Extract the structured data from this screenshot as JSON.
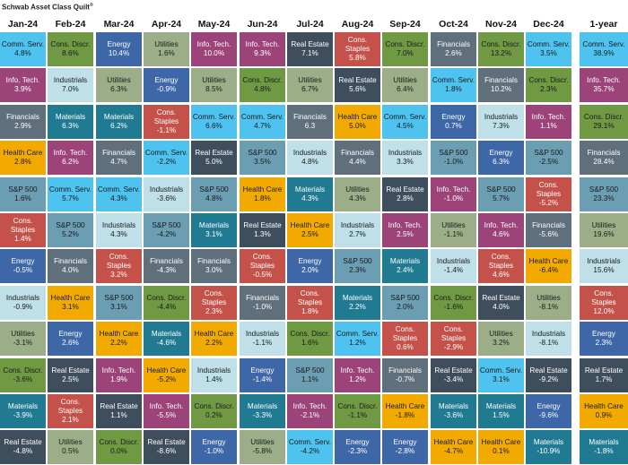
{
  "title": "Schwab Asset Class Quilt",
  "title_mark": "®",
  "chart_data": {
    "type": "table",
    "title": "Schwab Asset Class Quilt®",
    "columns": [
      "Jan-24",
      "Feb-24",
      "Mar-24",
      "Apr-24",
      "May-24",
      "Jun-24",
      "Jul-24",
      "Aug-24",
      "Sep-24",
      "Oct-24",
      "Nov-24",
      "Dec-24",
      "1-year"
    ],
    "colors": {
      "Comm. Serv.": {
        "bg": "#4fc3f0",
        "fg": "#1a1a1a"
      },
      "Cons. Discr.": {
        "bg": "#6f9a43",
        "fg": "#1a1a1a"
      },
      "Energy": {
        "bg": "#3e67a8",
        "fg": "#ffffff"
      },
      "Utilities": {
        "bg": "#9bae88",
        "fg": "#1a1a1a"
      },
      "Info. Tech.": {
        "bg": "#9c4479",
        "fg": "#ffffff"
      },
      "Real Estate": {
        "bg": "#3e4e5d",
        "fg": "#ffffff"
      },
      "Cons. Staples": {
        "bg": "#c5524a",
        "fg": "#ffffff"
      },
      "Financials": {
        "bg": "#5f6f7b",
        "fg": "#ffffff"
      },
      "Industrials": {
        "bg": "#bfe0e8",
        "fg": "#1a1a1a"
      },
      "Materials": {
        "bg": "#1f7a92",
        "fg": "#ffffff"
      },
      "Health Care": {
        "bg": "#f2aa00",
        "fg": "#1a1a1a"
      },
      "S&P 500": {
        "bg": "#6b9db3",
        "fg": "#1a1a1a"
      }
    },
    "cells": [
      [
        [
          "Comm. Serv.",
          "4.8%"
        ],
        [
          "Info. Tech.",
          "3.9%"
        ],
        [
          "Financials",
          "2.9%"
        ],
        [
          "Health Care",
          "2.8%"
        ],
        [
          "S&P 500",
          "1.6%"
        ],
        [
          "Cons. Staples",
          "1.4%"
        ],
        [
          "Energy",
          "-0.5%"
        ],
        [
          "Industrials",
          "-0.9%"
        ],
        [
          "Utilities",
          "-3.1%"
        ],
        [
          "Cons. Discr.",
          "-3.6%"
        ],
        [
          "Materials",
          "-3.9%"
        ],
        [
          "Real Estate",
          "-4.8%"
        ]
      ],
      [
        [
          "Cons. Discr.",
          "8.6%"
        ],
        [
          "Industrials",
          "7.0%"
        ],
        [
          "Materials",
          "6.3%"
        ],
        [
          "Info. Tech.",
          "6.2%"
        ],
        [
          "Comm. Serv.",
          "5.7%"
        ],
        [
          "S&P 500",
          "5.2%"
        ],
        [
          "Financials",
          "4.0%"
        ],
        [
          "Health Care",
          "3.1%"
        ],
        [
          "Energy",
          "2.6%"
        ],
        [
          "Real Estate",
          "2.5%"
        ],
        [
          "Cons. Staples",
          "2.1%"
        ],
        [
          "Utilities",
          "0.5%"
        ]
      ],
      [
        [
          "Energy",
          "10.4%"
        ],
        [
          "Utilities",
          "6.3%"
        ],
        [
          "Materials",
          "6.2%"
        ],
        [
          "Financials",
          "4.7%"
        ],
        [
          "Comm. Serv.",
          "4.3%"
        ],
        [
          "Industrials",
          "4.3%"
        ],
        [
          "Cons. Staples",
          "3.2%"
        ],
        [
          "S&P 500",
          "3.1%"
        ],
        [
          "Health Care",
          "2.2%"
        ],
        [
          "Info. Tech.",
          "1.9%"
        ],
        [
          "Real Estate",
          "1.1%"
        ],
        [
          "Cons. Discr.",
          "0.0%"
        ]
      ],
      [
        [
          "Utilities",
          "1.6%"
        ],
        [
          "Energy",
          "-0.9%"
        ],
        [
          "Cons. Staples",
          "-1.1%"
        ],
        [
          "Comm. Serv.",
          "-2.2%"
        ],
        [
          "Industrials",
          "-3.6%"
        ],
        [
          "S&P 500",
          "-4.2%"
        ],
        [
          "Financials",
          "-4.3%"
        ],
        [
          "Cons. Discr.",
          "-4.4%"
        ],
        [
          "Materials",
          "-4.6%"
        ],
        [
          "Health Care",
          "-5.2%"
        ],
        [
          "Info. Tech.",
          "-5.5%"
        ],
        [
          "Real Estate",
          "-8.6%"
        ]
      ],
      [
        [
          "Info. Tech.",
          "10.0%"
        ],
        [
          "Utilities",
          "8.5%"
        ],
        [
          "Comm. Serv.",
          "6.6%"
        ],
        [
          "Real Estate",
          "5.0%"
        ],
        [
          "S&P 500",
          "4.8%"
        ],
        [
          "Materials",
          "3.1%"
        ],
        [
          "Financials",
          "3.0%"
        ],
        [
          "Cons. Staples",
          "2.3%"
        ],
        [
          "Health Care",
          "2.2%"
        ],
        [
          "Industrials",
          "1.4%"
        ],
        [
          "Cons. Discr.",
          "0.2%"
        ],
        [
          "Energy",
          "-1.0%"
        ]
      ],
      [
        [
          "Info. Tech.",
          "9.3%"
        ],
        [
          "Cons. Discr.",
          "4.8%"
        ],
        [
          "Comm. Serv.",
          "4.7%"
        ],
        [
          "S&P 500",
          "3.5%"
        ],
        [
          "Health Care",
          "1.8%"
        ],
        [
          "Real Estate",
          "1.3%"
        ],
        [
          "Cons. Staples",
          "-0.5%"
        ],
        [
          "Financials",
          "-1.0%"
        ],
        [
          "Industrials",
          "-1.1%"
        ],
        [
          "Energy",
          "-1.4%"
        ],
        [
          "Materials",
          "-3.3%"
        ],
        [
          "Utilities",
          "-5.8%"
        ]
      ],
      [
        [
          "Real Estate",
          "7.1%"
        ],
        [
          "Utilities",
          "6.7%"
        ],
        [
          "Financials",
          "6.3"
        ],
        [
          "Industrials",
          "4.8%"
        ],
        [
          "Materials",
          "4.3%"
        ],
        [
          "Health Care",
          "2.5%"
        ],
        [
          "Energy",
          "2.0%"
        ],
        [
          "Cons. Staples",
          "1.8%"
        ],
        [
          "Cons. Discr.",
          "1.6%"
        ],
        [
          "S&P 500",
          "1.1%"
        ],
        [
          "Info. Tech.",
          "-2.1%"
        ],
        [
          "Comm. Serv.",
          "-4.2%"
        ]
      ],
      [
        [
          "Cons. Staples",
          "5.8%"
        ],
        [
          "Real Estate",
          "5.6%"
        ],
        [
          "Health Care",
          "5.0%"
        ],
        [
          "Financials",
          "4.4%"
        ],
        [
          "Utilities",
          "4.3%"
        ],
        [
          "Industrials",
          "2.7%"
        ],
        [
          "S&P 500",
          "2.3%"
        ],
        [
          "Materials",
          "2.2%"
        ],
        [
          "Comm. Serv.",
          "1.2%"
        ],
        [
          "Info. Tech.",
          "1.2%"
        ],
        [
          "Cons. Discr.",
          "-1.1%"
        ],
        [
          "Energy",
          "-2.3%"
        ]
      ],
      [
        [
          "Cons. Discr.",
          "7.0%"
        ],
        [
          "Utilities",
          "6.4%"
        ],
        [
          "Comm. Serv.",
          "4.5%"
        ],
        [
          "Industrials",
          "3.3%"
        ],
        [
          "Real Estate",
          "2.8%"
        ],
        [
          "Info. Tech.",
          "2.5%"
        ],
        [
          "Materials",
          "2.4%"
        ],
        [
          "S&P 500",
          "2.0%"
        ],
        [
          "Cons. Staples",
          "0.6%"
        ],
        [
          "Financials",
          "-0.7%"
        ],
        [
          "Health Care",
          "-1.8%"
        ],
        [
          "Energy",
          "-2.8%"
        ]
      ],
      [
        [
          "Financials",
          "2.6%"
        ],
        [
          "Comm. Serv.",
          "1.8%"
        ],
        [
          "Energy",
          "0.7%"
        ],
        [
          "S&P 500",
          "-1.0%"
        ],
        [
          "Info. Tech.",
          "-1.0%"
        ],
        [
          "Utilities",
          "-1.1%"
        ],
        [
          "Industrials",
          "-1.4%"
        ],
        [
          "Cons. Discr.",
          "-1.6%"
        ],
        [
          "Cons. Staples",
          "-2.9%"
        ],
        [
          "Real Estate",
          "-3.4%"
        ],
        [
          "Materials",
          "-3.6%"
        ],
        [
          "Health Care",
          "-4.7%"
        ]
      ],
      [
        [
          "Cons. Discr.",
          "13.2%"
        ],
        [
          "Financials",
          "10.2%"
        ],
        [
          "Industrials",
          "7.3%"
        ],
        [
          "Energy",
          "6.3%"
        ],
        [
          "S&P 500",
          "5.7%"
        ],
        [
          "Info. Tech.",
          "4.6%"
        ],
        [
          "Cons. Staples",
          "4.6%"
        ],
        [
          "Real Estate",
          "4.0%"
        ],
        [
          "Utilities",
          "3.2%"
        ],
        [
          "Comm. Serv.",
          "3.1%"
        ],
        [
          "Materials",
          "1.5%"
        ],
        [
          "Health Care",
          "0.1%"
        ]
      ],
      [
        [
          "Comm. Serv.",
          "3.5%"
        ],
        [
          "Cons. Discr.",
          "2.3%"
        ],
        [
          "Info. Tech.",
          "1.1%"
        ],
        [
          "S&P 500",
          "-2.5%"
        ],
        [
          "Cons. Staples",
          "-5.2%"
        ],
        [
          "Financials",
          "-5.6%"
        ],
        [
          "Health Care",
          "-6.4%"
        ],
        [
          "Utilities",
          "-8.1%"
        ],
        [
          "Industrials",
          "-8.1%"
        ],
        [
          "Real Estate",
          "-9.2%"
        ],
        [
          "Energy",
          "-9.6%"
        ],
        [
          "Materials",
          "-10.9%"
        ]
      ],
      [
        [
          "Comm. Serv.",
          "38.9%"
        ],
        [
          "Info. Tech.",
          "35.7%"
        ],
        [
          "Cons. Discr.",
          "29.1%"
        ],
        [
          "Financials",
          "28.4%"
        ],
        [
          "S&P 500",
          "23.3%"
        ],
        [
          "Utilities",
          "19.6%"
        ],
        [
          "Industrials",
          "15.6%"
        ],
        [
          "Cons. Staples",
          "12.0%"
        ],
        [
          "Energy",
          "2.3%"
        ],
        [
          "Real Estate",
          "1.7%"
        ],
        [
          "Health Care",
          "0.9%"
        ],
        [
          "Materials",
          "-1.8%"
        ]
      ]
    ]
  }
}
